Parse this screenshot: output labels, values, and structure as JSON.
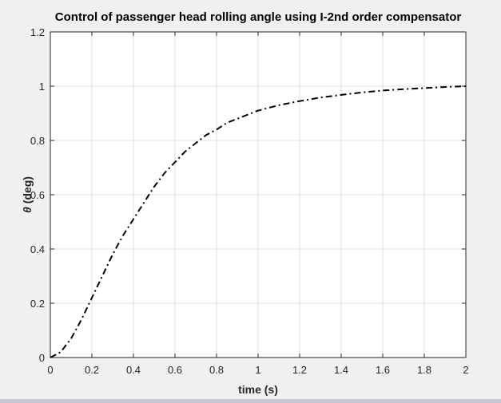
{
  "chart_data": {
    "type": "line",
    "title": "Control of passenger head rolling angle using I-2nd order compensator",
    "xlabel": "time (s)",
    "ylabel_symbol": "θ",
    "ylabel_units": " (deg)",
    "xlim": [
      0,
      2
    ],
    "ylim": [
      0,
      1.2
    ],
    "grid": true,
    "x_ticks": [
      0,
      0.2,
      0.4,
      0.6,
      0.8,
      1,
      1.2,
      1.4,
      1.6,
      1.8,
      2
    ],
    "x_tick_labels": [
      "0",
      "0.2",
      "0.4",
      "0.6",
      "0.8",
      "1",
      "1.2",
      "1.4",
      "1.6",
      "1.8",
      "2"
    ],
    "y_ticks": [
      0,
      0.2,
      0.4,
      0.6,
      0.8,
      1,
      1.2
    ],
    "y_tick_labels": [
      "0",
      "0.2",
      "0.4",
      "0.6",
      "0.8",
      "1",
      "1.2"
    ],
    "series": [
      {
        "line_style": "dash-dot",
        "color": "#000000",
        "x": [
          0,
          0.05,
          0.1,
          0.15,
          0.2,
          0.25,
          0.3,
          0.35,
          0.4,
          0.45,
          0.5,
          0.55,
          0.6,
          0.65,
          0.7,
          0.75,
          0.8,
          0.85,
          0.9,
          0.95,
          1.0,
          1.1,
          1.2,
          1.3,
          1.4,
          1.5,
          1.6,
          1.7,
          1.8,
          1.9,
          2.0
        ],
        "y": [
          0,
          0.02,
          0.07,
          0.14,
          0.22,
          0.3,
          0.38,
          0.45,
          0.51,
          0.57,
          0.63,
          0.68,
          0.72,
          0.76,
          0.79,
          0.82,
          0.84,
          0.865,
          0.88,
          0.895,
          0.91,
          0.93,
          0.945,
          0.958,
          0.968,
          0.977,
          0.984,
          0.989,
          0.993,
          0.997,
          1.0
        ]
      }
    ]
  }
}
